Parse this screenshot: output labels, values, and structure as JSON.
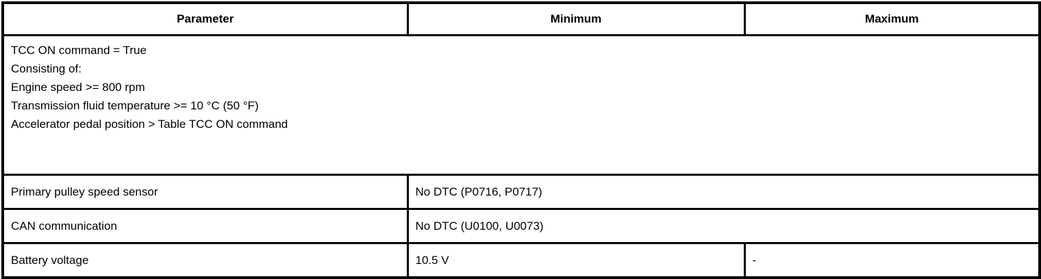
{
  "colors": {
    "border": "#000000",
    "background": "#ffffff",
    "text": "#000000"
  },
  "table": {
    "header": {
      "parameter": "Parameter",
      "minimum": "Minimum",
      "maximum": "Maximum"
    },
    "rows": [
      {
        "type": "criteria-full-span",
        "lines": [
          "TCC ON command = True",
          "Consisting of:",
          "Engine speed >= 800 rpm",
          "Transmission fluid temperature >= 10 °C (50 °F)",
          "Accelerator pedal position > Table TCC ON command"
        ]
      },
      {
        "type": "value-span",
        "parameter": "Primary pulley speed sensor",
        "value": "No DTC (P0716, P0717)"
      },
      {
        "type": "value-span",
        "parameter": "CAN communication",
        "value": "No DTC (U0100, U0073)"
      },
      {
        "type": "min-max",
        "parameter": "Battery voltage",
        "minimum": "10.5 V",
        "maximum": "-"
      }
    ]
  }
}
